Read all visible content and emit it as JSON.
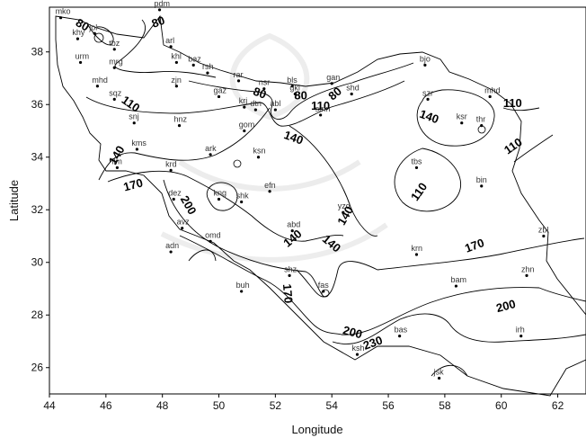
{
  "chart_data": {
    "type": "contour-map",
    "xlabel": "Longitude",
    "ylabel": "Latitude",
    "xlim": [
      44,
      63
    ],
    "ylim": [
      25,
      39.7
    ],
    "x_ticks": [
      44,
      46,
      48,
      50,
      52,
      54,
      56,
      58,
      60,
      62
    ],
    "y_ticks": [
      26,
      28,
      30,
      32,
      34,
      36,
      38
    ],
    "grid": false,
    "stations": [
      {
        "name": "mko",
        "lon": 44.4,
        "lat": 39.3
      },
      {
        "name": "pdm",
        "lon": 47.9,
        "lat": 39.6
      },
      {
        "name": "jol",
        "lon": 45.6,
        "lat": 38.7
      },
      {
        "name": "khy",
        "lon": 45.0,
        "lat": 38.5
      },
      {
        "name": "tbz",
        "lon": 46.3,
        "lat": 38.1
      },
      {
        "name": "arl",
        "lon": 48.3,
        "lat": 38.2
      },
      {
        "name": "khl",
        "lon": 48.5,
        "lat": 37.6
      },
      {
        "name": "urm",
        "lon": 45.1,
        "lat": 37.6
      },
      {
        "name": "mrg",
        "lon": 46.3,
        "lat": 37.4
      },
      {
        "name": "baz",
        "lon": 49.1,
        "lat": 37.5
      },
      {
        "name": "rsh",
        "lon": 49.6,
        "lat": 37.2
      },
      {
        "name": "mhd",
        "lon": 45.7,
        "lat": 36.7
      },
      {
        "name": "zjn",
        "lon": 48.5,
        "lat": 36.7
      },
      {
        "name": "rar",
        "lon": 50.7,
        "lat": 36.9
      },
      {
        "name": "nsr",
        "lon": 51.6,
        "lat": 36.6
      },
      {
        "name": "bls",
        "lon": 52.6,
        "lat": 36.7
      },
      {
        "name": "gan",
        "lon": 54.0,
        "lat": 36.8
      },
      {
        "name": "gkl",
        "lon": 52.7,
        "lat": 36.4
      },
      {
        "name": "shd",
        "lon": 54.7,
        "lat": 36.4
      },
      {
        "name": "bjo",
        "lon": 57.3,
        "lat": 37.5
      },
      {
        "name": "sqz",
        "lon": 46.3,
        "lat": 36.2
      },
      {
        "name": "gaz",
        "lon": 50.0,
        "lat": 36.3
      },
      {
        "name": "krj",
        "lon": 50.9,
        "lat": 35.9
      },
      {
        "name": "dtn",
        "lon": 51.3,
        "lat": 35.8
      },
      {
        "name": "abl",
        "lon": 52.0,
        "lat": 35.8
      },
      {
        "name": "szr",
        "lon": 57.4,
        "lat": 36.2
      },
      {
        "name": "mhd",
        "lon": 59.6,
        "lat": 36.3
      },
      {
        "name": "snj",
        "lon": 47.0,
        "lat": 35.3
      },
      {
        "name": "hnz",
        "lon": 48.6,
        "lat": 35.2
      },
      {
        "name": "smn",
        "lon": 53.6,
        "lat": 35.6
      },
      {
        "name": "ksr",
        "lon": 58.6,
        "lat": 35.3
      },
      {
        "name": "thr",
        "lon": 59.3,
        "lat": 35.2
      },
      {
        "name": "gom",
        "lon": 50.9,
        "lat": 35.0
      },
      {
        "name": "kms",
        "lon": 47.1,
        "lat": 34.3
      },
      {
        "name": "ark",
        "lon": 49.7,
        "lat": 34.1
      },
      {
        "name": "ksn",
        "lon": 51.4,
        "lat": 34.0
      },
      {
        "name": "tbs",
        "lon": 57.0,
        "lat": 33.6
      },
      {
        "name": "ilm",
        "lon": 46.4,
        "lat": 33.6
      },
      {
        "name": "krd",
        "lon": 48.3,
        "lat": 33.5
      },
      {
        "name": "dez",
        "lon": 48.4,
        "lat": 32.4
      },
      {
        "name": "kng",
        "lon": 50.0,
        "lat": 32.4
      },
      {
        "name": "shk",
        "lon": 50.8,
        "lat": 32.3
      },
      {
        "name": "efn",
        "lon": 51.8,
        "lat": 32.7
      },
      {
        "name": "bin",
        "lon": 59.3,
        "lat": 32.9
      },
      {
        "name": "yzd",
        "lon": 54.4,
        "lat": 31.9
      },
      {
        "name": "avz",
        "lon": 48.7,
        "lat": 31.3
      },
      {
        "name": "abd",
        "lon": 52.6,
        "lat": 31.2
      },
      {
        "name": "zbl",
        "lon": 61.5,
        "lat": 31.0
      },
      {
        "name": "omd",
        "lon": 49.7,
        "lat": 30.8
      },
      {
        "name": "adn",
        "lon": 48.3,
        "lat": 30.4
      },
      {
        "name": "krn",
        "lon": 57.0,
        "lat": 30.3
      },
      {
        "name": "shz",
        "lon": 52.5,
        "lat": 29.5
      },
      {
        "name": "zhn",
        "lon": 60.9,
        "lat": 29.5
      },
      {
        "name": "buh",
        "lon": 50.8,
        "lat": 28.9
      },
      {
        "name": "fas",
        "lon": 53.7,
        "lat": 28.9
      },
      {
        "name": "bam",
        "lon": 58.4,
        "lat": 29.1
      },
      {
        "name": "bas",
        "lon": 56.4,
        "lat": 27.2
      },
      {
        "name": "irh",
        "lon": 60.7,
        "lat": 27.2
      },
      {
        "name": "ksh",
        "lon": 54.9,
        "lat": 26.5
      },
      {
        "name": "jsk",
        "lon": 57.8,
        "lat": 25.6
      }
    ],
    "contour_labels": [
      {
        "text": "80",
        "lon": 45.1,
        "lat": 38.9,
        "angle": 30
      },
      {
        "text": "80",
        "lon": 47.9,
        "lat": 39.0,
        "angle": -20
      },
      {
        "text": "80",
        "lon": 51.4,
        "lat": 36.3,
        "angle": 20
      },
      {
        "text": "80",
        "lon": 52.9,
        "lat": 36.2,
        "angle": 0
      },
      {
        "text": "80",
        "lon": 54.2,
        "lat": 36.3,
        "angle": -40
      },
      {
        "text": "110",
        "lon": 46.8,
        "lat": 35.9,
        "angle": 35
      },
      {
        "text": "110",
        "lon": 53.6,
        "lat": 35.8,
        "angle": 0
      },
      {
        "text": "110",
        "lon": 60.4,
        "lat": 35.9,
        "angle": 0
      },
      {
        "text": "110",
        "lon": 60.5,
        "lat": 34.3,
        "angle": -35
      },
      {
        "text": "110",
        "lon": 57.2,
        "lat": 32.6,
        "angle": -55
      },
      {
        "text": "140",
        "lon": 57.4,
        "lat": 35.4,
        "angle": 20
      },
      {
        "text": "140",
        "lon": 52.6,
        "lat": 34.6,
        "angle": 20
      },
      {
        "text": "140",
        "lon": 46.5,
        "lat": 34.0,
        "angle": -60
      },
      {
        "text": "140",
        "lon": 54.6,
        "lat": 31.7,
        "angle": -60
      },
      {
        "text": "140",
        "lon": 52.7,
        "lat": 30.8,
        "angle": -40
      },
      {
        "text": "140",
        "lon": 53.9,
        "lat": 30.6,
        "angle": 40
      },
      {
        "text": "170",
        "lon": 47.0,
        "lat": 32.8,
        "angle": -15
      },
      {
        "text": "170",
        "lon": 59.1,
        "lat": 30.5,
        "angle": -20
      },
      {
        "text": "170",
        "lon": 52.3,
        "lat": 28.8,
        "angle": 85
      },
      {
        "text": "200",
        "lon": 48.8,
        "lat": 32.1,
        "angle": 60
      },
      {
        "text": "200",
        "lon": 60.2,
        "lat": 28.2,
        "angle": -15
      },
      {
        "text": "200",
        "lon": 54.7,
        "lat": 27.2,
        "angle": 15
      },
      {
        "text": "230",
        "lon": 55.5,
        "lat": 26.8,
        "angle": -20
      }
    ]
  }
}
